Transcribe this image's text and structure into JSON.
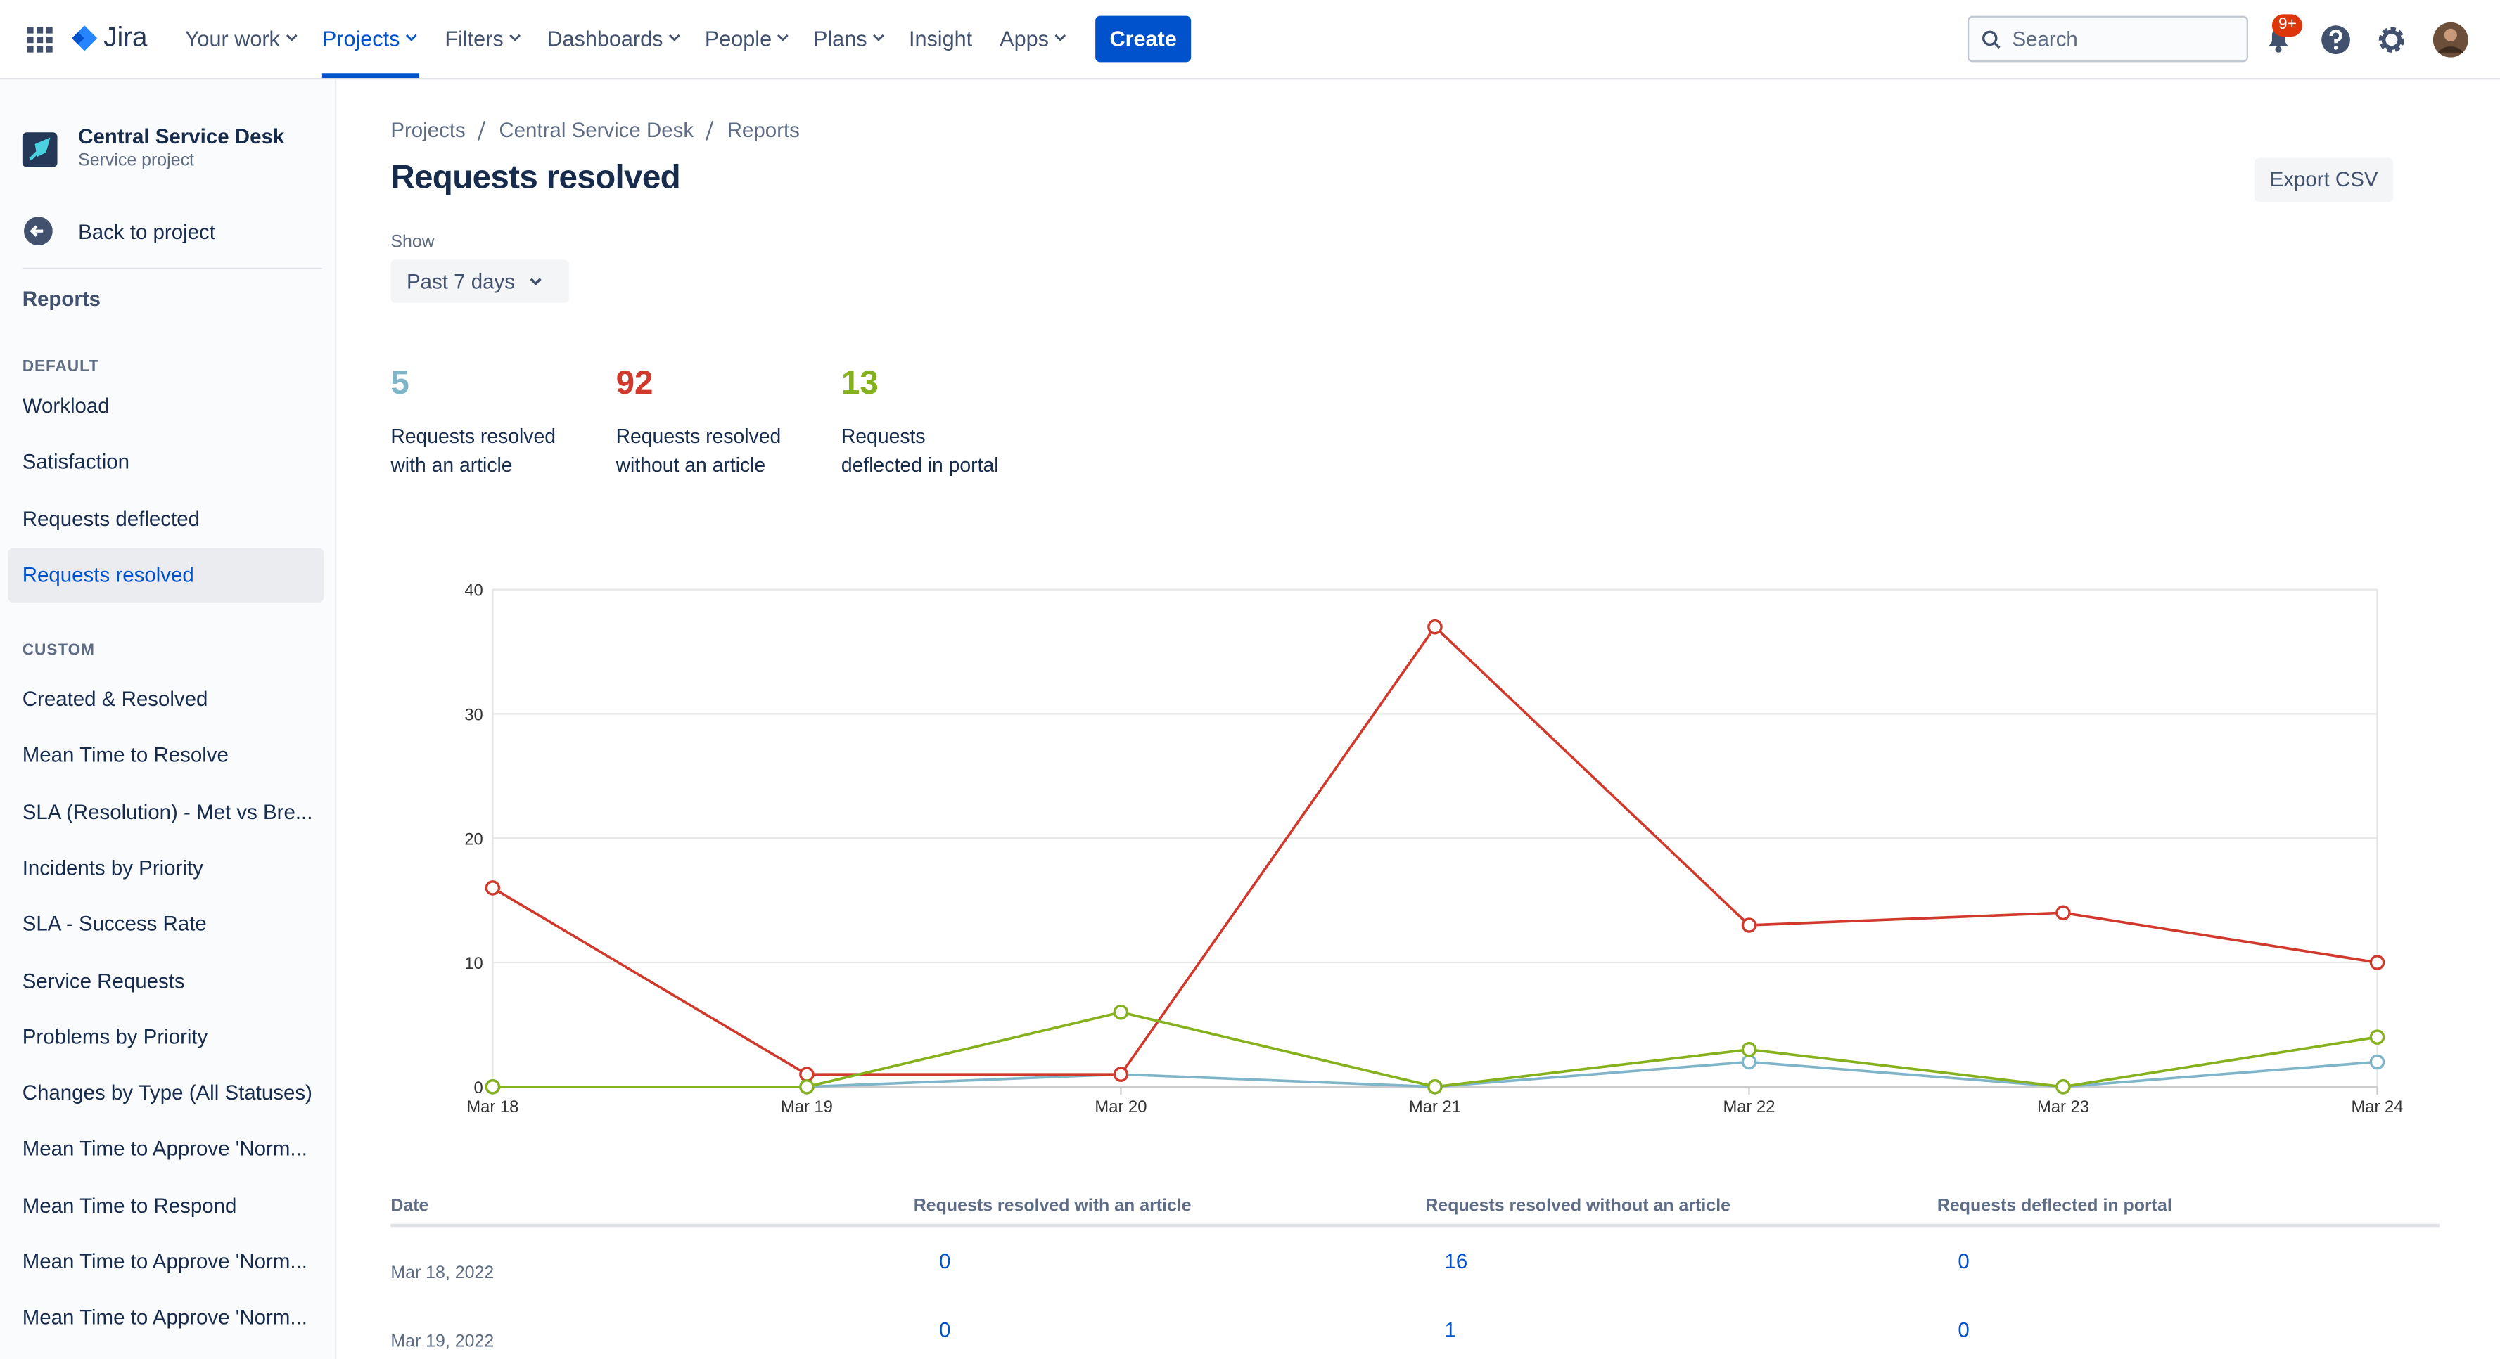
{
  "topbar": {
    "product": "Jira",
    "nav": [
      "Your work",
      "Projects",
      "Filters",
      "Dashboards",
      "People",
      "Plans",
      "Insight",
      "Apps"
    ],
    "create": "Create",
    "search": "Search",
    "badge": "9+"
  },
  "sidebar": {
    "project": "Central Service Desk",
    "project_type": "Service project",
    "back": "Back to project",
    "reports": "Reports",
    "default_label": "DEFAULT",
    "default_items": [
      "Workload",
      "Satisfaction",
      "Requests deflected",
      "Requests resolved"
    ],
    "custom_label": "CUSTOM",
    "custom_items": [
      "Created & Resolved",
      "Mean Time to Resolve",
      "SLA (Resolution) - Met vs Bre...",
      "Incidents by Priority",
      "SLA - Success Rate",
      "Service Requests",
      "Problems by Priority",
      "Changes by Type (All Statuses)",
      "Mean Time to Approve 'Norm...",
      "Mean Time to Respond",
      "Mean Time to Approve 'Norm...",
      "Mean Time to Approve 'Norm..."
    ]
  },
  "header": {
    "breadcrumbs": [
      "Projects",
      "Central Service Desk",
      "Reports"
    ],
    "title": "Requests resolved",
    "export": "Export CSV",
    "show_label": "Show",
    "period": "Past 7 days"
  },
  "stats": [
    {
      "value": "5",
      "label": "Requests resolved\nwith an article"
    },
    {
      "value": "92",
      "label": "Requests resolved\nwithout an article"
    },
    {
      "value": "13",
      "label": "Requests\ndeflected in portal"
    }
  ],
  "chart_data": {
    "type": "line",
    "categories": [
      "Mar 18",
      "Mar 19",
      "Mar 20",
      "Mar 21",
      "Mar 22",
      "Mar 23",
      "Mar 24"
    ],
    "series": [
      {
        "name": "Requests resolved with an article",
        "color": "#7fb5c8",
        "values": [
          0,
          0,
          1,
          0,
          2,
          0,
          2
        ]
      },
      {
        "name": "Requests resolved without an article",
        "color": "#d0392b",
        "values": [
          16,
          1,
          1,
          37,
          13,
          14,
          10
        ]
      },
      {
        "name": "Requests deflected in portal",
        "color": "#84b11c",
        "values": [
          0,
          0,
          6,
          0,
          3,
          0,
          4
        ]
      }
    ],
    "ylim": [
      0,
      40
    ],
    "yticks": [
      0,
      10,
      20,
      30,
      40
    ],
    "grid": true
  },
  "table": {
    "columns": [
      "Date",
      "Requests resolved with an article",
      "Requests resolved without an article",
      "Requests deflected in portal"
    ],
    "rows": [
      [
        "Mar 18, 2022",
        "0",
        "16",
        "0"
      ],
      [
        "Mar 19, 2022",
        "0",
        "1",
        "0"
      ]
    ]
  }
}
